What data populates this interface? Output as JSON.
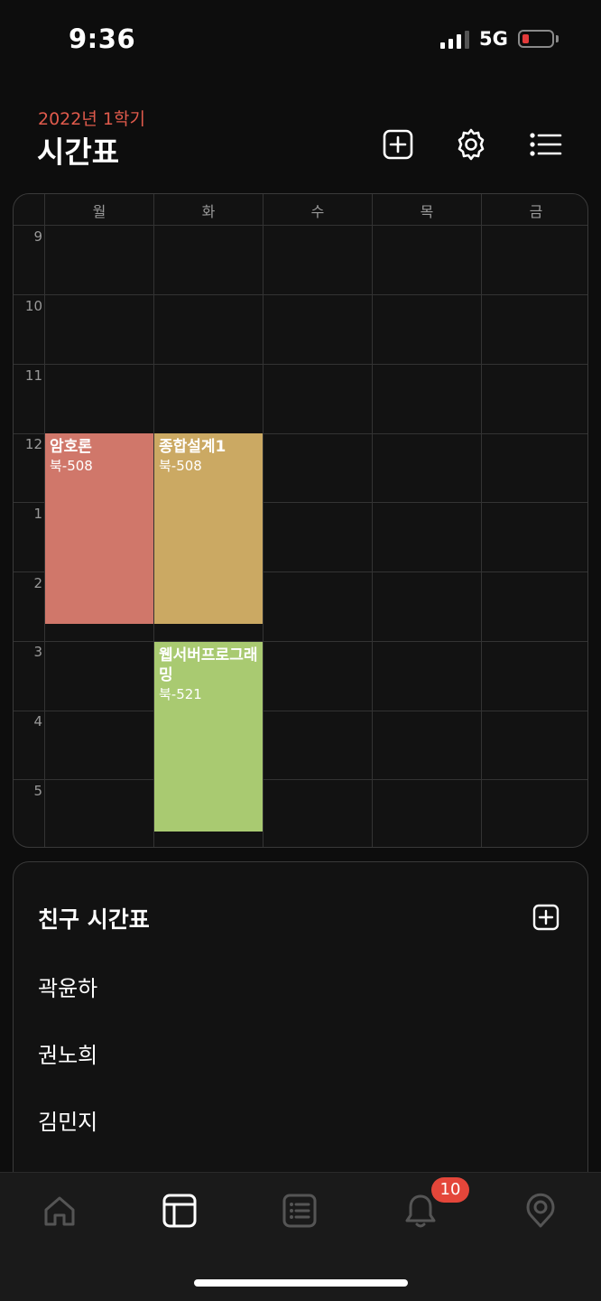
{
  "status_bar": {
    "time": "9:36",
    "network": "5G"
  },
  "header": {
    "semester": "2022년 1학기",
    "title": "시간표"
  },
  "timetable": {
    "days": [
      "월",
      "화",
      "수",
      "목",
      "금"
    ],
    "hours": [
      "9",
      "10",
      "11",
      "12",
      "1",
      "2",
      "3",
      "4",
      "5"
    ],
    "courses": [
      {
        "name": "암호론",
        "room": "북-508",
        "day": "월",
        "start": "12",
        "end": "2:45",
        "color": "#d0776a"
      },
      {
        "name": "종합설계1",
        "room": "북-508",
        "day": "화",
        "start": "12",
        "end": "2:45",
        "color": "#cba963"
      },
      {
        "name": "웹서버프로그래밍",
        "room": "북-521",
        "day": "화",
        "start": "3",
        "end": "5:45",
        "color": "#a9ca71"
      }
    ]
  },
  "friends": {
    "title": "친구 시간표",
    "names": [
      "곽윤하",
      "권노희",
      "김민지"
    ]
  },
  "tab_bar": {
    "tabs": [
      "home-icon",
      "timetable-icon",
      "list-icon",
      "bell-icon",
      "campus-pin-icon"
    ],
    "notification_count": "10",
    "active_color": "#ffffff",
    "inactive_color": "#555555"
  }
}
